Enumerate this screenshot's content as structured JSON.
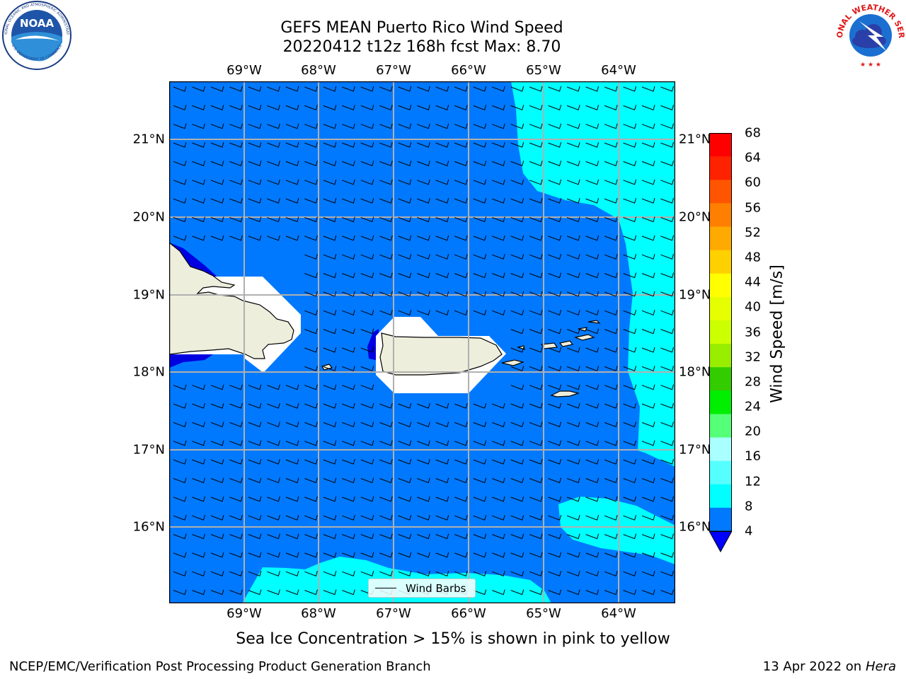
{
  "header": {
    "title_line1": "GEFS MEAN Puerto Rico Wind Speed",
    "title_line2": "20220412 t12z 168h fcst   Max: 8.70"
  },
  "map": {
    "lon_labels": [
      "69°W",
      "68°W",
      "67°W",
      "66°W",
      "65°W",
      "64°W"
    ],
    "lat_labels": [
      "21°N",
      "20°N",
      "19°N",
      "18°N",
      "17°N",
      "16°N"
    ],
    "lon_range": [
      -70.0,
      -63.3
    ],
    "lat_range": [
      15.0,
      21.7
    ],
    "legend_label": "Wind Barbs",
    "colors": {
      "speed_4_8": "#0079ff",
      "speed_8_12": "#00ffff",
      "speed_below_4": "#0000e0",
      "land": "#eeeedd",
      "grid": "#b0b0b0"
    }
  },
  "colorbar": {
    "label": "Wind Speed [m/s]",
    "ticks": [
      "68",
      "64",
      "60",
      "56",
      "52",
      "48",
      "44",
      "40",
      "36",
      "32",
      "28",
      "24",
      "20",
      "16",
      "12",
      "8",
      "4"
    ],
    "band_colors": [
      "#ff0000",
      "#ff2200",
      "#ff5500",
      "#ff8000",
      "#ffaa00",
      "#ffd000",
      "#ffff00",
      "#e6ff00",
      "#ccff00",
      "#99ee00",
      "#33cc00",
      "#00ee00",
      "#55ff77",
      "#aaffff",
      "#55ffff",
      "#00ffff",
      "#0079ff"
    ],
    "under_color": "#0000ff"
  },
  "note": "Sea Ice Concentration > 15% is shown in pink to yellow",
  "footer": {
    "left": "NCEP/EMC/Verification Post Processing Product Generation Branch",
    "right_date": "13 Apr 2022 on ",
    "right_host": "Hera"
  },
  "logos": {
    "noaa_text": "NOAA",
    "noaa_ring_text": "NATIONAL OCEANIC AND ATMOSPHERIC ADMINISTRATION",
    "noaa_ring_bottom": "U.S. DEPARTMENT OF COMMERCE",
    "nws_ring_text": "NATIONAL WEATHER SERVICE"
  }
}
